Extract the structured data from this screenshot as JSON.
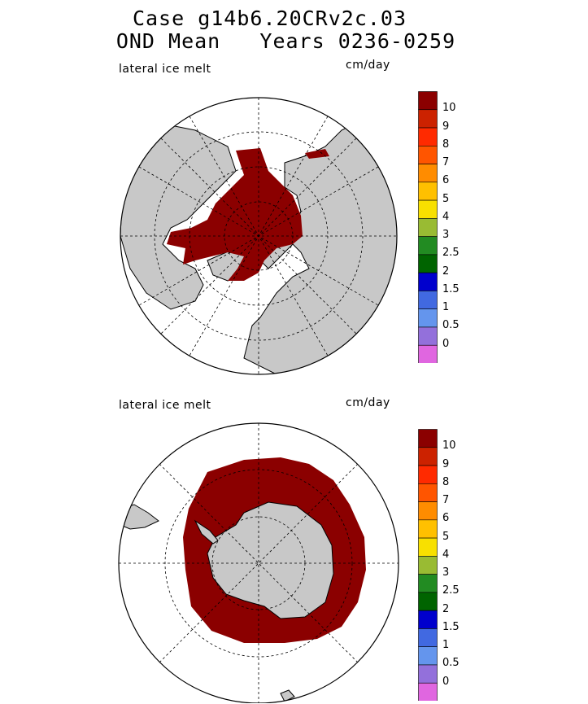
{
  "title": {
    "line1": "Case g14b6.20CRv2c.03",
    "line2": "OND Mean   Years 0236-0259"
  },
  "panels": [
    {
      "label": "lateral ice melt",
      "units": "cm/day",
      "hemisphere": "north"
    },
    {
      "label": "lateral ice melt",
      "units": "cm/day",
      "hemisphere": "south"
    }
  ],
  "colorbar": {
    "levels": [
      "10",
      "9",
      "8",
      "7",
      "6",
      "5",
      "4",
      "3",
      "2.5",
      "2",
      "1.5",
      "1",
      "0.5",
      "0"
    ],
    "colors": [
      "#8b0000",
      "#cc2200",
      "#ff2a00",
      "#ff5500",
      "#ff8c00",
      "#ffc000",
      "#f8e000",
      "#99bb33",
      "#228b22",
      "#006400",
      "#0000cd",
      "#4169e1",
      "#6495ed",
      "#9370db",
      "#e066e0"
    ]
  },
  "colors": {
    "land": "#c8c8c8",
    "ice_melt": "#8b0000",
    "ocean": "#ffffff"
  }
}
